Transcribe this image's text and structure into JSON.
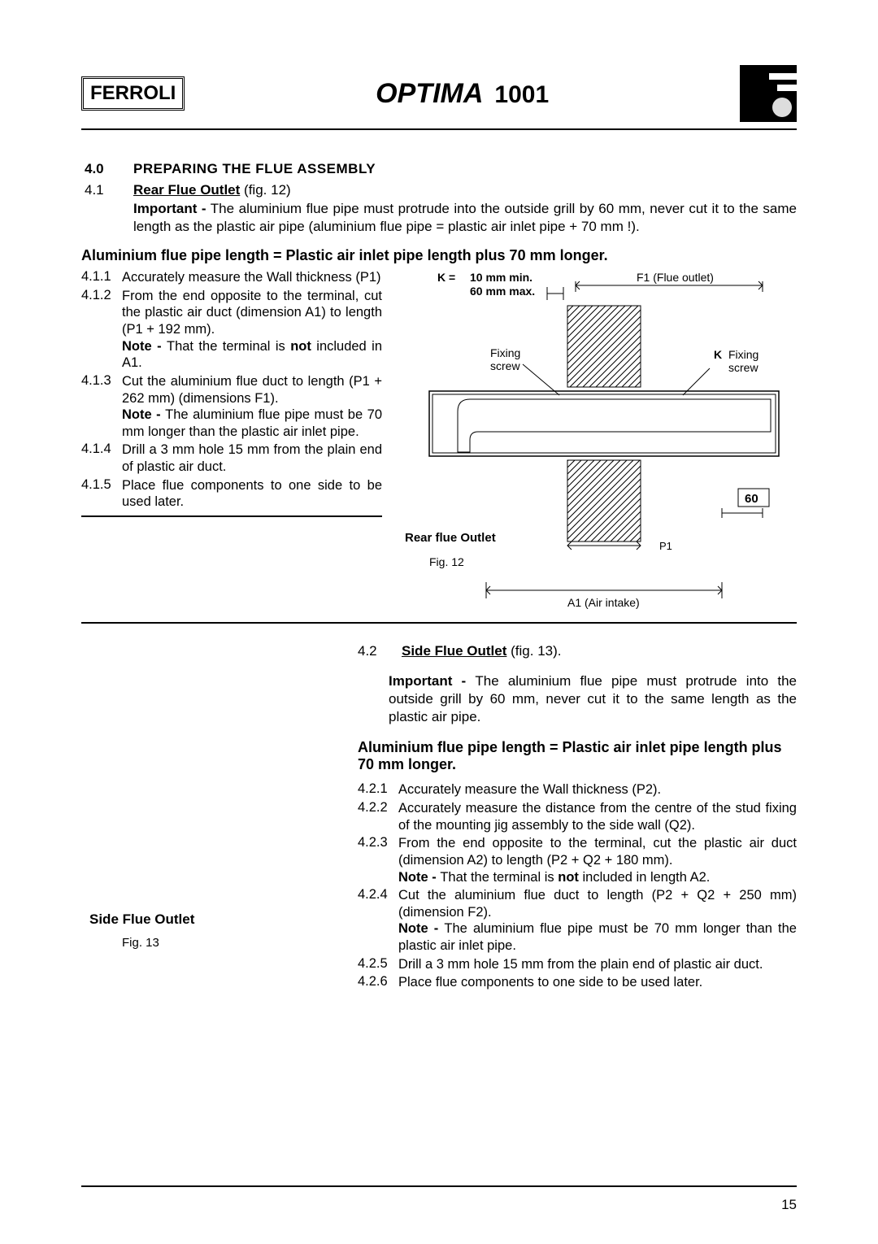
{
  "header": {
    "brand": "FERROLI",
    "product": "OPTIMA",
    "model": "1001"
  },
  "section40": {
    "num": "4.0",
    "title": "PREPARING THE FLUE ASSEMBLY"
  },
  "section41": {
    "num": "4.1",
    "title": "Rear Flue Outlet",
    "figref": "(fig. 12)",
    "important_label": "Important -",
    "important_text": " The aluminium flue pipe must protrude into the outside grill by 60 mm, never cut it to the same length as the plastic air pipe (aluminium flue pipe = plastic air inlet pipe + 70 mm !).",
    "formula": "Aluminium flue pipe length = Plastic air inlet pipe length plus 70 mm longer.",
    "items": [
      {
        "n": "4.1.1",
        "t": "Accurately measure the Wall thickness (P1)"
      },
      {
        "n": "4.1.2",
        "t": "From the end opposite to the terminal, cut the plastic air duct (dimension A1) to length (P1 + 192 mm).",
        "note": "Note - ",
        "noteText": "That the terminal is ",
        "nb": "not",
        "noteTail": " included in A1."
      },
      {
        "n": "4.1.3",
        "t": "Cut the aluminium flue duct to length (P1 + 262 mm) (dimensions F1).",
        "note": "Note - ",
        "noteText": "The aluminium flue pipe must be 70 mm longer than the plastic air inlet pipe."
      },
      {
        "n": "4.1.4",
        "t": "Drill a 3 mm hole 15 mm from the plain end of plastic air duct."
      },
      {
        "n": "4.1.5",
        "t": "Place flue components to one side to be used later."
      }
    ]
  },
  "diagram": {
    "k_label": "K  =",
    "k_min": "10 mm min.",
    "k_max": "60 mm max.",
    "f1": "F1 (Flue outlet)",
    "fixing": "Fixing",
    "screw": "screw",
    "k": "K",
    "sixty": "60",
    "p1": "P1",
    "title": "Rear flue Outlet",
    "fig": "Fig. 12",
    "a1": "A1 (Air intake)"
  },
  "section42": {
    "num": "4.2",
    "title": "Side Flue Outlet",
    "figref": "(fig. 13).",
    "important_label": "Important - ",
    "important_text": "The aluminium flue pipe must protrude into the outside grill by 60 mm, never cut it to the same length as the plastic air pipe.",
    "formula": "Aluminium flue pipe length = Plastic air inlet pipe length plus 70 mm longer.",
    "figlabel": "Side Flue Outlet",
    "figcap": "Fig. 13",
    "items": [
      {
        "n": "4.2.1",
        "t": "Accurately measure the Wall thickness (P2)."
      },
      {
        "n": "4.2.2",
        "t": "Accurately measure the distance from the centre of the stud fixing of the mounting jig assembly to the side wall (Q2)."
      },
      {
        "n": "4.2.3",
        "t": "From the end opposite to the terminal, cut the plastic air duct (dimension A2) to length (P2 + Q2 + 180 mm).",
        "note": "Note - ",
        "noteText": "That the terminal is ",
        "nb": "not",
        "noteTail": " included in length A2."
      },
      {
        "n": "4.2.4",
        "t": "Cut the aluminium flue duct to length (P2 + Q2 + 250 mm) (dimension F2).",
        "note": "Note - ",
        "noteText": "The aluminium flue pipe must be 70 mm longer than the plastic air inlet pipe."
      },
      {
        "n": "4.2.5",
        "t": "Drill a 3 mm hole 15 mm from the plain end of plastic air duct."
      },
      {
        "n": "4.2.6",
        "t": "Place flue components to one side to be used later."
      }
    ]
  },
  "page_num": "15"
}
